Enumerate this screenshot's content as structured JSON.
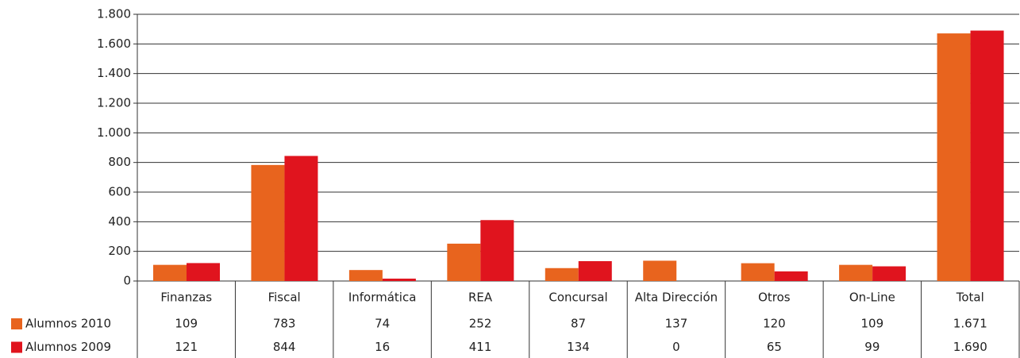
{
  "chart_data": {
    "type": "bar",
    "categories": [
      "Finanzas",
      "Fiscal",
      "Informática",
      "REA",
      "Concursal",
      "Alta Dirección",
      "Otros",
      "On-Line",
      "Total"
    ],
    "series": [
      {
        "name": "Alumnos 2010",
        "color": "#e8641e",
        "values": [
          109,
          783,
          74,
          252,
          87,
          137,
          120,
          109,
          1671
        ],
        "value_labels": [
          "109",
          "783",
          "74",
          "252",
          "87",
          "137",
          "120",
          "109",
          "1.671"
        ]
      },
      {
        "name": "Alumnos 2009",
        "color": "#e0141e",
        "values": [
          121,
          844,
          16,
          411,
          134,
          0,
          65,
          99,
          1690
        ],
        "value_labels": [
          "121",
          "844",
          "16",
          "411",
          "134",
          "0",
          "65",
          "99",
          "1.690"
        ]
      }
    ],
    "ylim": [
      0,
      1800
    ],
    "yticks": [
      0,
      200,
      400,
      600,
      800,
      {
        "value": 1000,
        "label": "1.000"
      },
      {
        "value": 1200,
        "label": "1.200"
      },
      {
        "value": 1400,
        "label": "1.400"
      },
      {
        "value": 1600,
        "label": "1.600"
      },
      {
        "value": 1800,
        "label": "1.800"
      }
    ],
    "grid": true
  }
}
